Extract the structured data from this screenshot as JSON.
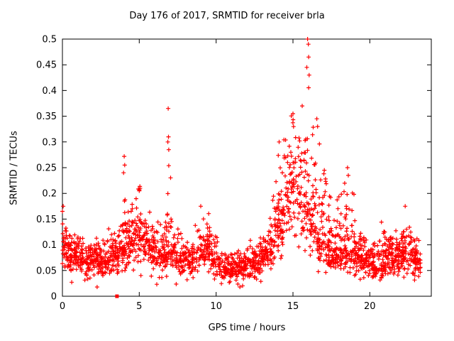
{
  "chart_data": {
    "type": "scatter",
    "title": "Day 176 of 2017, SRMTID for receiver brla",
    "xlabel": "GPS time / hours",
    "ylabel": "SRMTID / TECUs",
    "xlim": [
      0,
      24
    ],
    "ylim": [
      0,
      0.5
    ],
    "xticks": {
      "values": [
        0,
        5,
        10,
        15,
        20
      ],
      "labels": [
        "0",
        "5",
        "10",
        "15",
        "20"
      ]
    },
    "yticks": {
      "values": [
        0,
        0.05,
        0.1,
        0.15,
        0.2,
        0.25,
        0.3,
        0.35,
        0.4,
        0.45,
        0.5
      ],
      "labels": [
        "0",
        "0.05",
        "0.1",
        "0.15",
        "0.2",
        "0.25",
        "0.3",
        "0.35",
        "0.4",
        "0.45",
        "0.5"
      ]
    },
    "grid": false,
    "legend": "none",
    "marker": "+",
    "marker_color": "#ff0000",
    "axis_color": "#000000",
    "series_name": "SRMTID",
    "n_points": 2200,
    "seed": 176,
    "t_range": [
      0.0,
      23.3
    ],
    "envelope_note": "piecewise [hour, median_TECU, max_TECU] envelope of dense scatter",
    "envelope": [
      [
        0.0,
        0.1,
        0.175
      ],
      [
        0.3,
        0.09,
        0.14
      ],
      [
        0.8,
        0.085,
        0.13
      ],
      [
        1.5,
        0.075,
        0.12
      ],
      [
        2.2,
        0.07,
        0.115
      ],
      [
        3.0,
        0.07,
        0.12
      ],
      [
        3.6,
        0.085,
        0.15
      ],
      [
        4.0,
        0.1,
        0.26
      ],
      [
        4.4,
        0.1,
        0.17
      ],
      [
        5.0,
        0.125,
        0.21
      ],
      [
        5.4,
        0.12,
        0.19
      ],
      [
        6.0,
        0.09,
        0.15
      ],
      [
        6.6,
        0.08,
        0.14
      ],
      [
        6.9,
        0.09,
        0.3
      ],
      [
        7.2,
        0.085,
        0.16
      ],
      [
        7.8,
        0.075,
        0.13
      ],
      [
        8.4,
        0.07,
        0.12
      ],
      [
        9.0,
        0.09,
        0.17
      ],
      [
        9.6,
        0.085,
        0.15
      ],
      [
        10.0,
        0.07,
        0.12
      ],
      [
        10.6,
        0.058,
        0.1
      ],
      [
        11.2,
        0.052,
        0.09
      ],
      [
        11.8,
        0.055,
        0.1
      ],
      [
        12.4,
        0.065,
        0.11
      ],
      [
        13.0,
        0.075,
        0.13
      ],
      [
        13.6,
        0.095,
        0.17
      ],
      [
        14.0,
        0.13,
        0.3
      ],
      [
        14.5,
        0.19,
        0.33
      ],
      [
        15.0,
        0.23,
        0.36
      ],
      [
        15.5,
        0.21,
        0.37
      ],
      [
        16.0,
        0.19,
        0.44
      ],
      [
        16.3,
        0.15,
        0.35
      ],
      [
        16.8,
        0.11,
        0.28
      ],
      [
        17.3,
        0.095,
        0.22
      ],
      [
        17.8,
        0.085,
        0.18
      ],
      [
        18.3,
        0.09,
        0.22
      ],
      [
        18.7,
        0.095,
        0.24
      ],
      [
        19.2,
        0.08,
        0.16
      ],
      [
        19.7,
        0.07,
        0.13
      ],
      [
        20.2,
        0.06,
        0.12
      ],
      [
        20.7,
        0.062,
        0.14
      ],
      [
        21.2,
        0.07,
        0.13
      ],
      [
        21.8,
        0.08,
        0.15
      ],
      [
        22.3,
        0.09,
        0.16
      ],
      [
        22.8,
        0.08,
        0.13
      ],
      [
        23.3,
        0.07,
        0.11
      ]
    ],
    "outliers": [
      [
        0.0,
        0.165
      ],
      [
        0.05,
        0.175
      ],
      [
        3.98,
        0.24
      ],
      [
        4.02,
        0.272
      ],
      [
        4.05,
        0.255
      ],
      [
        5.0,
        0.205
      ],
      [
        5.05,
        0.21
      ],
      [
        6.86,
        0.3
      ],
      [
        6.88,
        0.365
      ],
      [
        6.9,
        0.31
      ],
      [
        6.92,
        0.285
      ],
      [
        9.0,
        0.175
      ],
      [
        14.1,
        0.3
      ],
      [
        15.0,
        0.355
      ],
      [
        15.6,
        0.37
      ],
      [
        15.9,
        0.445
      ],
      [
        15.95,
        0.5
      ],
      [
        16.0,
        0.49
      ],
      [
        16.02,
        0.465
      ],
      [
        16.05,
        0.43
      ],
      [
        16.55,
        0.345
      ],
      [
        16.6,
        0.33
      ],
      [
        18.55,
        0.25
      ],
      [
        18.6,
        0.235
      ],
      [
        22.3,
        0.175
      ]
    ],
    "special_points": [
      {
        "x": 3.55,
        "y": 0,
        "marker": "filled-square",
        "color": "#ff0000"
      }
    ]
  }
}
